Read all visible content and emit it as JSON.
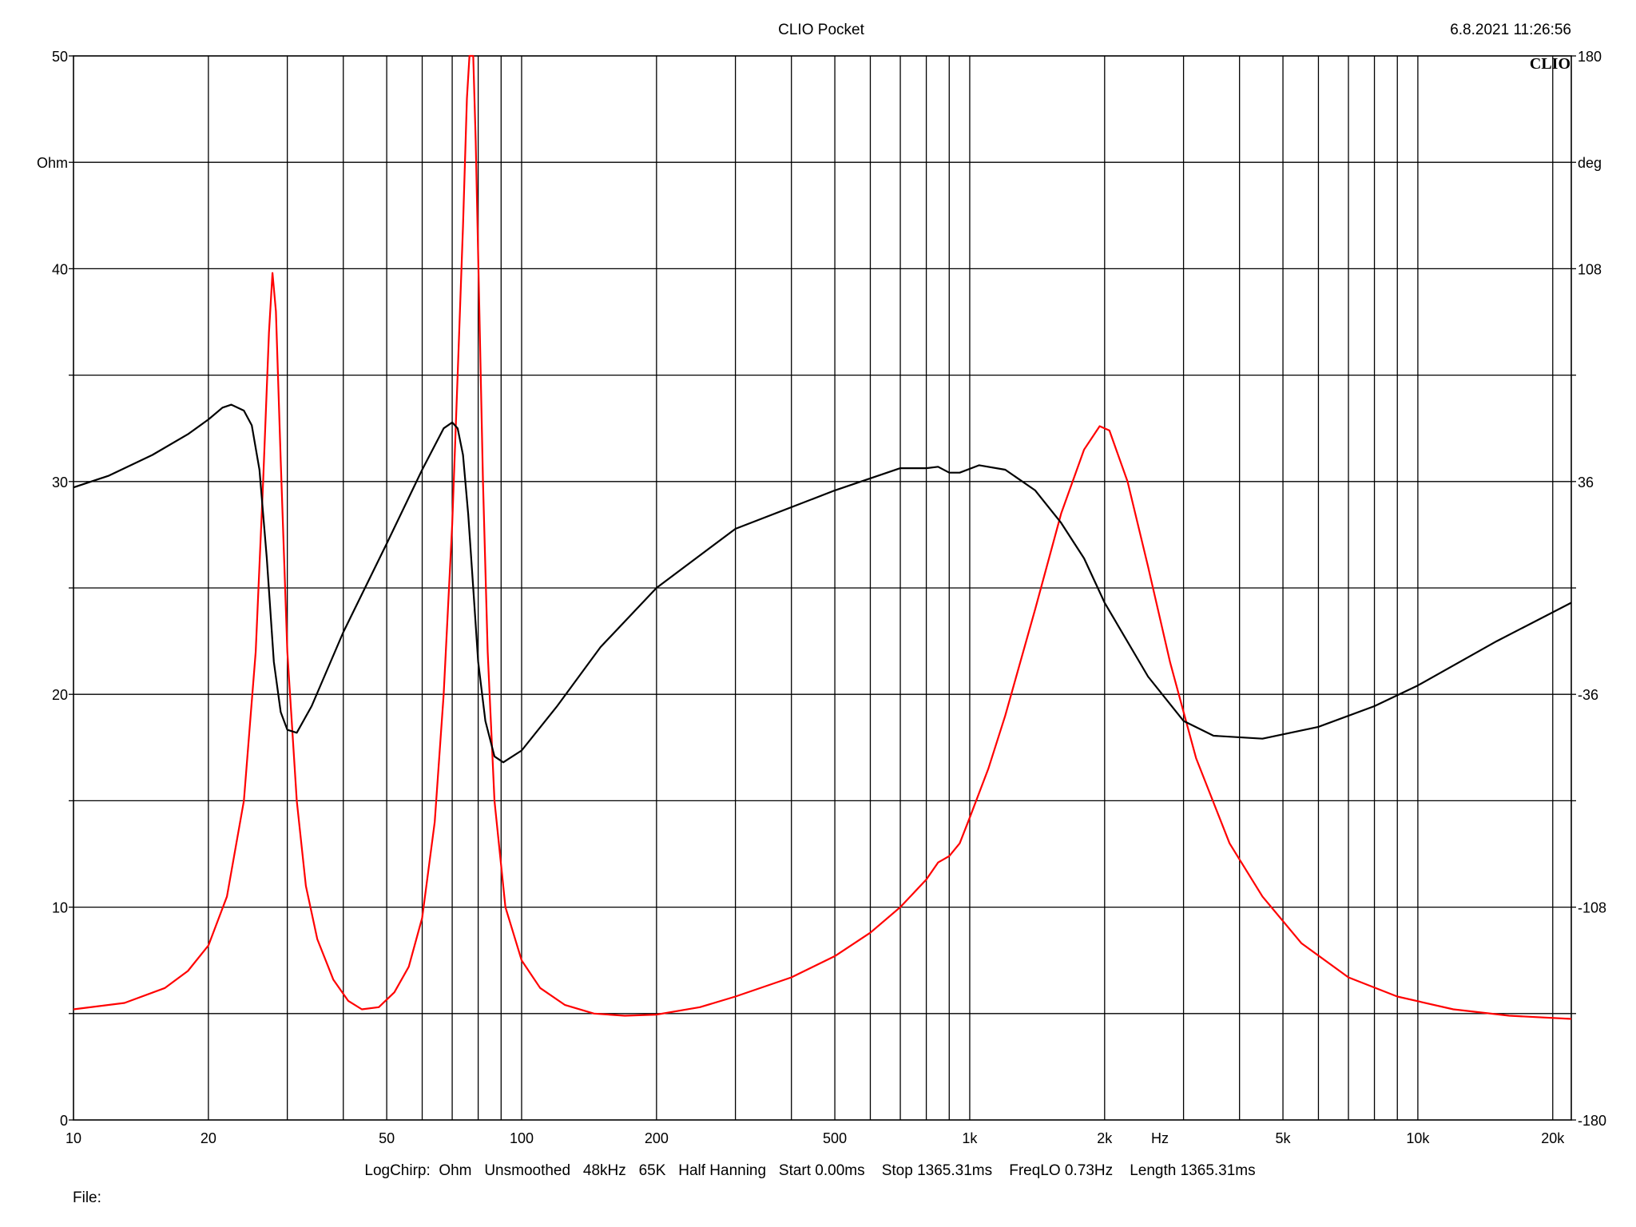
{
  "header": {
    "title": "CLIO Pocket",
    "timestamp": "6.8.2021 11:26:56",
    "logo": "CLIO"
  },
  "footer": {
    "info": "LogChirp:  Ohm   Unsmoothed   48kHz   65K   Half Hanning   Start 0.00ms    Stop 1365.31ms    FreqLO 0.73Hz    Length 1365.31ms",
    "file_label": "File:"
  },
  "chart_data": {
    "type": "line",
    "xscale": "log",
    "xlim": [
      10,
      22000
    ],
    "xunit": "Hz",
    "x_tick_labels": [
      {
        "value": 10,
        "label": "10"
      },
      {
        "value": 20,
        "label": "20"
      },
      {
        "value": 50,
        "label": "50"
      },
      {
        "value": 100,
        "label": "100"
      },
      {
        "value": 200,
        "label": "200"
      },
      {
        "value": 500,
        "label": "500"
      },
      {
        "value": 1000,
        "label": "1k"
      },
      {
        "value": 2000,
        "label": "2k"
      },
      {
        "value": 5000,
        "label": "5k"
      },
      {
        "value": 10000,
        "label": "10k"
      },
      {
        "value": 20000,
        "label": "20k"
      }
    ],
    "y_left": {
      "unit": "Ohm",
      "lim": [
        0,
        50
      ],
      "ticks": [
        0,
        10,
        20,
        30,
        40,
        50
      ]
    },
    "y_right": {
      "unit": "deg",
      "lim": [
        -180,
        180
      ],
      "ticks": [
        -180,
        -108,
        -36,
        36,
        108,
        180
      ]
    },
    "grid": true,
    "colors": {
      "impedance": "#ff0000",
      "phase": "#000000",
      "grid": "#000000"
    },
    "series": [
      {
        "axis": "left",
        "color": "#ff0000",
        "points": [
          [
            10,
            5.2
          ],
          [
            13,
            5.5
          ],
          [
            16,
            6.2
          ],
          [
            18,
            7.0
          ],
          [
            20,
            8.2
          ],
          [
            22,
            10.5
          ],
          [
            24,
            15.0
          ],
          [
            25.5,
            22.0
          ],
          [
            26.5,
            30.0
          ],
          [
            27.3,
            37.0
          ],
          [
            27.8,
            39.8
          ],
          [
            28.3,
            38.0
          ],
          [
            29,
            31.0
          ],
          [
            30,
            22.0
          ],
          [
            31.5,
            15.0
          ],
          [
            33,
            11.0
          ],
          [
            35,
            8.5
          ],
          [
            38,
            6.6
          ],
          [
            41,
            5.6
          ],
          [
            44,
            5.2
          ],
          [
            48,
            5.3
          ],
          [
            52,
            6.0
          ],
          [
            56,
            7.2
          ],
          [
            60,
            9.5
          ],
          [
            64,
            14.0
          ],
          [
            67,
            20.0
          ],
          [
            70,
            28.0
          ],
          [
            72,
            35.0
          ],
          [
            74,
            42.0
          ],
          [
            75.5,
            48.0
          ],
          [
            76.5,
            50.0
          ],
          [
            78,
            50.0
          ],
          [
            79,
            46.0
          ],
          [
            80.5,
            38.0
          ],
          [
            82,
            30.0
          ],
          [
            84,
            22.0
          ],
          [
            87,
            15.0
          ],
          [
            92,
            10.0
          ],
          [
            100,
            7.5
          ],
          [
            110,
            6.2
          ],
          [
            125,
            5.4
          ],
          [
            145,
            5.0
          ],
          [
            170,
            4.9
          ],
          [
            200,
            4.95
          ],
          [
            250,
            5.3
          ],
          [
            300,
            5.8
          ],
          [
            400,
            6.7
          ],
          [
            500,
            7.7
          ],
          [
            600,
            8.8
          ],
          [
            700,
            10.0
          ],
          [
            800,
            11.3
          ],
          [
            850,
            12.1
          ],
          [
            900,
            12.4
          ],
          [
            950,
            13.0
          ],
          [
            1000,
            14.2
          ],
          [
            1100,
            16.5
          ],
          [
            1200,
            19.0
          ],
          [
            1400,
            24.0
          ],
          [
            1600,
            28.5
          ],
          [
            1800,
            31.5
          ],
          [
            1950,
            32.6
          ],
          [
            2050,
            32.4
          ],
          [
            2250,
            30.0
          ],
          [
            2500,
            26.0
          ],
          [
            2800,
            21.5
          ],
          [
            3200,
            17.0
          ],
          [
            3800,
            13.0
          ],
          [
            4500,
            10.5
          ],
          [
            5500,
            8.3
          ],
          [
            7000,
            6.7
          ],
          [
            9000,
            5.8
          ],
          [
            12000,
            5.2
          ],
          [
            16000,
            4.9
          ],
          [
            22000,
            4.75
          ]
        ]
      },
      {
        "axis": "right",
        "color": "#000000",
        "points": [
          [
            10,
            34.0
          ],
          [
            12,
            38.0
          ],
          [
            15,
            45.0
          ],
          [
            18,
            52.0
          ],
          [
            20,
            57.0
          ],
          [
            21.5,
            61.0
          ],
          [
            22.5,
            62.0
          ],
          [
            24,
            60.0
          ],
          [
            25,
            55.0
          ],
          [
            26,
            40.0
          ],
          [
            27,
            10.0
          ],
          [
            28,
            -25.0
          ],
          [
            29,
            -42.0
          ],
          [
            30,
            -48.0
          ],
          [
            31.5,
            -49.0
          ],
          [
            34,
            -40.0
          ],
          [
            40,
            -15.0
          ],
          [
            50,
            15.0
          ],
          [
            60,
            40.0
          ],
          [
            67,
            54.0
          ],
          [
            70,
            56.0
          ],
          [
            72,
            54.0
          ],
          [
            74,
            45.0
          ],
          [
            76,
            25.0
          ],
          [
            78,
            0.0
          ],
          [
            80,
            -25.0
          ],
          [
            83,
            -45.0
          ],
          [
            87,
            -57.0
          ],
          [
            91,
            -59.0
          ],
          [
            100,
            -55.0
          ],
          [
            120,
            -40.0
          ],
          [
            150,
            -20.0
          ],
          [
            200,
            0.0
          ],
          [
            300,
            20.0
          ],
          [
            500,
            33.0
          ],
          [
            700,
            40.5
          ],
          [
            800,
            40.5
          ],
          [
            850,
            41.0
          ],
          [
            900,
            39.0
          ],
          [
            950,
            39.0
          ],
          [
            1050,
            41.5
          ],
          [
            1200,
            40.0
          ],
          [
            1400,
            33.0
          ],
          [
            1600,
            22.0
          ],
          [
            1800,
            10.0
          ],
          [
            2000,
            -5.0
          ],
          [
            2500,
            -30.0
          ],
          [
            3000,
            -45.0
          ],
          [
            3500,
            -50.0
          ],
          [
            4500,
            -51.0
          ],
          [
            6000,
            -47.0
          ],
          [
            8000,
            -40.0
          ],
          [
            10000,
            -33.0
          ],
          [
            15000,
            -18.0
          ],
          [
            22000,
            -5.0
          ]
        ]
      }
    ]
  }
}
